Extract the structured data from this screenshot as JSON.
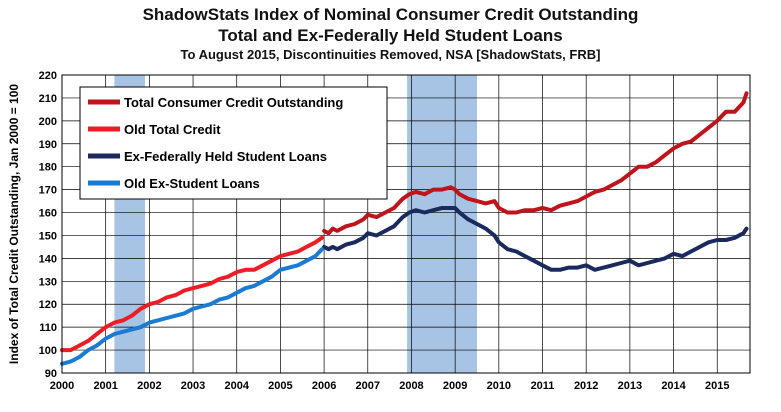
{
  "chart_data": {
    "type": "line",
    "title": "ShadowStats Index of Nominal Consumer Credit Outstanding",
    "title2": "Total and Ex-Federally Held Student Loans",
    "subtitle": "To August 2015, Discontinuities Removed, NSA [ShadowStats, FRB]",
    "ylabel": "Index of Total Credit Outstanding, Jan 2000 = 100",
    "xlabel": "",
    "xlim": [
      2000,
      2015.75
    ],
    "ylim": [
      90,
      220
    ],
    "yticks": [
      90,
      100,
      110,
      120,
      130,
      140,
      150,
      160,
      170,
      180,
      190,
      200,
      210,
      220
    ],
    "xticks": [
      "2000",
      "2001",
      "2002",
      "2003",
      "2004",
      "2005",
      "2006",
      "2007",
      "2008",
      "2009",
      "2010",
      "2011",
      "2012",
      "2013",
      "2014",
      "2015"
    ],
    "grid": true,
    "legend_position": "top-left",
    "recessions": [
      [
        2001.2,
        2001.9
      ],
      [
        2007.9,
        2009.5
      ]
    ],
    "recession_color": "#a8c4e4",
    "series": [
      {
        "name": "Total Consumer Credit Outstanding",
        "color": "#c0141c",
        "x": [
          2006.0,
          2006.1,
          2006.2,
          2006.3,
          2006.5,
          2006.7,
          2006.9,
          2007.0,
          2007.2,
          2007.4,
          2007.6,
          2007.8,
          2007.95,
          2008.1,
          2008.3,
          2008.5,
          2008.7,
          2008.9,
          2009.0,
          2009.1,
          2009.3,
          2009.5,
          2009.7,
          2009.9,
          2010.0,
          2010.2,
          2010.4,
          2010.6,
          2010.8,
          2011.0,
          2011.2,
          2011.4,
          2011.6,
          2011.8,
          2012.0,
          2012.2,
          2012.4,
          2012.6,
          2012.8,
          2013.0,
          2013.2,
          2013.4,
          2013.6,
          2013.8,
          2014.0,
          2014.2,
          2014.4,
          2014.6,
          2014.8,
          2015.0,
          2015.2,
          2015.4,
          2015.6
        ],
        "y": [
          152,
          151,
          153,
          152,
          154,
          155,
          157,
          159,
          158,
          160,
          162,
          166,
          168,
          169,
          168,
          170,
          170,
          171,
          170,
          168,
          166,
          165,
          164,
          165,
          162,
          160,
          160,
          161,
          161,
          162,
          161,
          163,
          164,
          165,
          167,
          169,
          170,
          172,
          174,
          177,
          180,
          180,
          182,
          185,
          188,
          190,
          191,
          194,
          197,
          200,
          204,
          204,
          208
        ],
        "end": {
          "x": 2015.67,
          "y": 212
        }
      },
      {
        "name": "Old Total Credit",
        "color": "#ee1c24",
        "x": [
          2000.0,
          2000.2,
          2000.4,
          2000.6,
          2000.8,
          2001.0,
          2001.2,
          2001.4,
          2001.6,
          2001.8,
          2002.0,
          2002.2,
          2002.4,
          2002.6,
          2002.8,
          2003.0,
          2003.2,
          2003.4,
          2003.6,
          2003.8,
          2004.0,
          2004.2,
          2004.4,
          2004.6,
          2004.8,
          2005.0,
          2005.2,
          2005.4,
          2005.6,
          2005.8
        ],
        "y": [
          100,
          100,
          102,
          104,
          107,
          110,
          112,
          113,
          115,
          118,
          120,
          121,
          123,
          124,
          126,
          127,
          128,
          129,
          131,
          132,
          134,
          135,
          135,
          137,
          139,
          141,
          142,
          143,
          145,
          147
        ],
        "end": {
          "x": 2005.95,
          "y": 149
        }
      },
      {
        "name": "Ex-Federally Held Student Loans",
        "color": "#1a2a5e",
        "x": [
          2006.0,
          2006.1,
          2006.2,
          2006.3,
          2006.5,
          2006.7,
          2006.9,
          2007.0,
          2007.2,
          2007.4,
          2007.6,
          2007.8,
          2007.95,
          2008.1,
          2008.3,
          2008.5,
          2008.7,
          2008.9,
          2009.0,
          2009.1,
          2009.3,
          2009.5,
          2009.7,
          2009.9,
          2010.0,
          2010.2,
          2010.4,
          2010.6,
          2010.8,
          2011.0,
          2011.2,
          2011.4,
          2011.6,
          2011.8,
          2012.0,
          2012.2,
          2012.4,
          2012.6,
          2012.8,
          2013.0,
          2013.2,
          2013.4,
          2013.6,
          2013.8,
          2014.0,
          2014.2,
          2014.4,
          2014.6,
          2014.8,
          2015.0,
          2015.2,
          2015.4,
          2015.6
        ],
        "y": [
          145,
          144,
          145,
          144,
          146,
          147,
          149,
          151,
          150,
          152,
          154,
          158,
          160,
          161,
          160,
          161,
          162,
          162,
          162,
          160,
          157,
          155,
          153,
          150,
          147,
          144,
          143,
          141,
          139,
          137,
          135,
          135,
          136,
          136,
          137,
          135,
          136,
          137,
          138,
          139,
          137,
          138,
          139,
          140,
          142,
          141,
          143,
          145,
          147,
          148,
          148,
          149,
          151
        ],
        "end": {
          "x": 2015.67,
          "y": 153
        }
      },
      {
        "name": "Old Ex-Student Loans",
        "color": "#1a7ad4",
        "x": [
          2000.0,
          2000.2,
          2000.4,
          2000.6,
          2000.8,
          2001.0,
          2001.2,
          2001.4,
          2001.6,
          2001.8,
          2002.0,
          2002.2,
          2002.4,
          2002.6,
          2002.8,
          2003.0,
          2003.2,
          2003.4,
          2003.6,
          2003.8,
          2004.0,
          2004.2,
          2004.4,
          2004.6,
          2004.8,
          2005.0,
          2005.2,
          2005.4,
          2005.6,
          2005.8
        ],
        "y": [
          94,
          95,
          97,
          100,
          102,
          105,
          107,
          108,
          109,
          110,
          112,
          113,
          114,
          115,
          116,
          118,
          119,
          120,
          122,
          123,
          125,
          127,
          128,
          130,
          132,
          135,
          136,
          137,
          139,
          141
        ],
        "end": {
          "x": 2005.95,
          "y": 144
        }
      }
    ]
  }
}
